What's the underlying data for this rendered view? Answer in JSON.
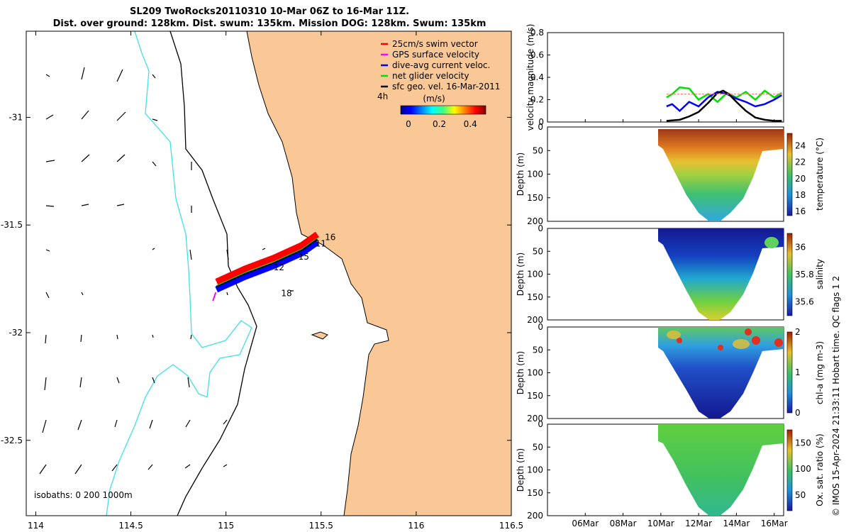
{
  "title_line1": "SL209 TwoRocks20110310 10-Mar 06Z to 16-Mar 11Z.",
  "title_line2": "Dist. over ground: 128km. Dist. swum: 135km. Mission DOG: 128km. Swum: 135km",
  "credit": "© IMOS 15-Apr-2024 21:33:11 Hobart time. QC flags 1  2",
  "colors": {
    "land": "#f9c896",
    "coast": "#000000",
    "iso200": "#000000",
    "iso0": "#40e0e8",
    "swim": "#ff0000",
    "gps": "#ff00ff",
    "dive": "#0000ff",
    "net": "#00e000",
    "geo": "#000000"
  },
  "chart_data": [
    {
      "type": "map",
      "xlim": [
        113.95,
        116.5
      ],
      "ylim": [
        -32.85,
        -30.6
      ],
      "xticks": [
        114,
        114.5,
        115,
        115.5,
        116,
        116.5
      ],
      "xtick_labels": [
        "114",
        "114.5",
        "115",
        "115.5",
        "116",
        "116.5"
      ],
      "yticks": [
        -31,
        -31.5,
        -32,
        -32.5
      ],
      "ytick_labels": [
        "-31",
        "-31.5",
        "-32",
        "-32.5"
      ],
      "legend": {
        "entries": [
          "25cm/s swim vector",
          "GPS surface velocity",
          "dive-avg current veloc.",
          "net glider velocity",
          "sfc geo. vel. 16-Mar-2011"
        ],
        "colorbar_label": "(m/s)",
        "colorbar_ticks": [
          "0",
          "0.2",
          "0.4"
        ],
        "colorbar_range": [
          -0.05,
          0.5
        ],
        "scale_label": "4h"
      },
      "isobath_note": "isobaths: 0   200  1000m",
      "track": [
        [
          114.95,
          -31.78
        ],
        [
          115.1,
          -31.72
        ],
        [
          115.25,
          -31.67
        ],
        [
          115.4,
          -31.61
        ],
        [
          115.48,
          -31.56
        ]
      ],
      "track_labels": [
        {
          "text": "16",
          "lon": 115.52,
          "lat": -31.57
        },
        {
          "text": "11",
          "lon": 115.47,
          "lat": -31.6
        },
        {
          "text": "15",
          "lon": 115.38,
          "lat": -31.66
        },
        {
          "text": "12",
          "lon": 115.25,
          "lat": -31.71
        },
        {
          "text": "18",
          "lon": 115.29,
          "lat": -31.83
        }
      ]
    },
    {
      "type": "line",
      "ylabel": "velocity magnitude (m/s)",
      "ylim": [
        0,
        0.8
      ],
      "yticks": [
        0,
        0.2,
        0.4,
        0.6,
        0.8
      ],
      "ytick_labels": [
        "0",
        "0.2",
        "0.4",
        "0.6",
        "0.8"
      ],
      "xlim": [
        4,
        16.5
      ],
      "xticks": [
        6,
        8,
        10,
        12,
        14,
        16
      ],
      "xtick_labels": [
        "06Mar",
        "08Mar",
        "10Mar",
        "12Mar",
        "14Mar",
        "16Mar"
      ],
      "series": [
        {
          "name": "net glider velocity",
          "color": "#00e000",
          "x": [
            10.3,
            10.6,
            11.0,
            11.5,
            12.0,
            12.5,
            13.0,
            13.5,
            14.0,
            14.5,
            15.0,
            15.5,
            16.0,
            16.4
          ],
          "y": [
            0.22,
            0.25,
            0.31,
            0.3,
            0.2,
            0.25,
            0.18,
            0.26,
            0.22,
            0.27,
            0.2,
            0.28,
            0.22,
            0.26
          ]
        },
        {
          "name": "dive-avg current veloc.",
          "color": "#0000ff",
          "x": [
            10.3,
            10.6,
            11.0,
            11.5,
            12.0,
            12.5,
            13.0,
            13.5,
            14.0,
            14.5,
            15.0,
            15.5,
            16.0,
            16.4
          ],
          "y": [
            0.14,
            0.16,
            0.1,
            0.18,
            0.14,
            0.22,
            0.27,
            0.25,
            0.21,
            0.18,
            0.14,
            0.16,
            0.2,
            0.24
          ]
        },
        {
          "name": "sfc geo. vel.",
          "color": "#000000",
          "x": [
            10.3,
            11.0,
            11.5,
            12.0,
            12.5,
            13.0,
            13.3,
            13.6,
            14.0,
            14.5,
            15.0,
            15.5,
            16.0,
            16.4
          ],
          "y": [
            0.01,
            0.02,
            0.05,
            0.09,
            0.17,
            0.26,
            0.28,
            0.25,
            0.18,
            0.1,
            0.04,
            0.02,
            0.01,
            0.01
          ]
        },
        {
          "name": "swim vector",
          "color": "#ff8080",
          "x": [
            10.3,
            16.4
          ],
          "y": [
            0.25,
            0.25
          ]
        }
      ]
    },
    {
      "type": "heatmap",
      "ylabel": "Depth (m)",
      "cblabel": "temperature (°C)",
      "ylim": [
        200,
        0
      ],
      "yticks": [
        0,
        50,
        100,
        150,
        200
      ],
      "ytick_labels": [
        "0",
        "50",
        "100",
        "150",
        "200"
      ],
      "cbticks": [
        "16",
        "18",
        "20",
        "22",
        "24"
      ],
      "cbrange": [
        15.5,
        25.5
      ]
    },
    {
      "type": "heatmap",
      "ylabel": "Depth (m)",
      "cblabel": "salinity",
      "ylim": [
        200,
        0
      ],
      "yticks": [
        0,
        50,
        100,
        150,
        200
      ],
      "ytick_labels": [
        "0",
        "50",
        "100",
        "150",
        "200"
      ],
      "cbticks": [
        "35.6",
        "35.8",
        "36"
      ],
      "cbrange": [
        35.5,
        36.1
      ]
    },
    {
      "type": "heatmap",
      "ylabel": "Depth (m)",
      "cblabel": "chl-a (mg m-3)",
      "ylim": [
        200,
        0
      ],
      "yticks": [
        0,
        50,
        100,
        150,
        200
      ],
      "ytick_labels": [
        "0",
        "50",
        "100",
        "150",
        "200"
      ],
      "cbticks": [
        "0",
        "1",
        "2"
      ],
      "cbrange": [
        0,
        2
      ]
    },
    {
      "type": "heatmap",
      "ylabel": "Depth (m)",
      "cblabel": "Ox. sat. ratio (%)",
      "ylim": [
        200,
        0
      ],
      "yticks": [
        0,
        50,
        100,
        150,
        200
      ],
      "ytick_labels": [
        "0",
        "50",
        "100",
        "150",
        "200"
      ],
      "cbticks": [
        "50",
        "100",
        "150"
      ],
      "cbrange": [
        20,
        175
      ],
      "xticks": [
        6,
        8,
        10,
        12,
        14,
        16
      ],
      "xtick_labels": [
        "06Mar",
        "08Mar",
        "10Mar",
        "12Mar",
        "14Mar",
        "16Mar"
      ]
    }
  ]
}
